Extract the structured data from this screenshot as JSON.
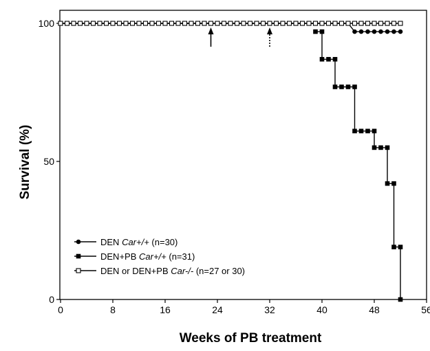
{
  "chart_data": {
    "type": "line",
    "xlabel": "Weeks of PB treatment",
    "ylabel": "Survival (%)",
    "xlim": [
      0,
      56
    ],
    "ylim": [
      0,
      100
    ],
    "x_ticks": [
      0,
      8,
      16,
      24,
      32,
      40,
      48,
      56
    ],
    "y_ticks": [
      0,
      50,
      100
    ],
    "grid": false,
    "legend_position": "bottom-left",
    "series": [
      {
        "name_parts": [
          "DEN ",
          "Car+/+",
          " (n=30)"
        ],
        "marker": "filled-circle",
        "color": "#000000",
        "points": [
          [
            0,
            100
          ],
          [
            1,
            100
          ],
          [
            2,
            100
          ],
          [
            3,
            100
          ],
          [
            4,
            100
          ],
          [
            5,
            100
          ],
          [
            6,
            100
          ],
          [
            7,
            100
          ],
          [
            8,
            100
          ],
          [
            9,
            100
          ],
          [
            10,
            100
          ],
          [
            11,
            100
          ],
          [
            12,
            100
          ],
          [
            13,
            100
          ],
          [
            14,
            100
          ],
          [
            15,
            100
          ],
          [
            16,
            100
          ],
          [
            17,
            100
          ],
          [
            18,
            100
          ],
          [
            19,
            100
          ],
          [
            20,
            100
          ],
          [
            21,
            100
          ],
          [
            22,
            100
          ],
          [
            23,
            100
          ],
          [
            24,
            100
          ],
          [
            25,
            100
          ],
          [
            26,
            100
          ],
          [
            27,
            100
          ],
          [
            28,
            100
          ],
          [
            29,
            100
          ],
          [
            30,
            100
          ],
          [
            31,
            100
          ],
          [
            32,
            100
          ],
          [
            33,
            100
          ],
          [
            34,
            100
          ],
          [
            35,
            100
          ],
          [
            36,
            100
          ],
          [
            37,
            100
          ],
          [
            38,
            100
          ],
          [
            39,
            100
          ],
          [
            40,
            100
          ],
          [
            41,
            100
          ],
          [
            42,
            100
          ],
          [
            43,
            100
          ],
          [
            44,
            100
          ],
          [
            45,
            97
          ],
          [
            46,
            97
          ],
          [
            47,
            97
          ],
          [
            48,
            97
          ],
          [
            49,
            97
          ],
          [
            50,
            97
          ],
          [
            51,
            97
          ],
          [
            52,
            97
          ]
        ]
      },
      {
        "name_parts": [
          "DEN+PB ",
          "Car+/+",
          " (n=31)"
        ],
        "marker": "filled-square",
        "color": "#000000",
        "points": [
          [
            39,
            97
          ],
          [
            40,
            97
          ],
          [
            40,
            87
          ],
          [
            41,
            87
          ],
          [
            42,
            87
          ],
          [
            42,
            77
          ],
          [
            43,
            77
          ],
          [
            44,
            77
          ],
          [
            45,
            77
          ],
          [
            45,
            61
          ],
          [
            46,
            61
          ],
          [
            47,
            61
          ],
          [
            48,
            61
          ],
          [
            48,
            55
          ],
          [
            49,
            55
          ],
          [
            50,
            55
          ],
          [
            50,
            42
          ],
          [
            51,
            42
          ],
          [
            51,
            19
          ],
          [
            52,
            19
          ],
          [
            52,
            0
          ]
        ]
      },
      {
        "name_parts": [
          "DEN or DEN+PB ",
          "Car-/-",
          " (n=27 or 30)"
        ],
        "marker": "open-square",
        "color": "#000000",
        "points": [
          [
            0,
            100
          ],
          [
            1,
            100
          ],
          [
            2,
            100
          ],
          [
            3,
            100
          ],
          [
            4,
            100
          ],
          [
            5,
            100
          ],
          [
            6,
            100
          ],
          [
            7,
            100
          ],
          [
            8,
            100
          ],
          [
            9,
            100
          ],
          [
            10,
            100
          ],
          [
            11,
            100
          ],
          [
            12,
            100
          ],
          [
            13,
            100
          ],
          [
            14,
            100
          ],
          [
            15,
            100
          ],
          [
            16,
            100
          ],
          [
            17,
            100
          ],
          [
            18,
            100
          ],
          [
            19,
            100
          ],
          [
            20,
            100
          ],
          [
            21,
            100
          ],
          [
            22,
            100
          ],
          [
            23,
            100
          ],
          [
            24,
            100
          ],
          [
            25,
            100
          ],
          [
            26,
            100
          ],
          [
            27,
            100
          ],
          [
            28,
            100
          ],
          [
            29,
            100
          ],
          [
            30,
            100
          ],
          [
            31,
            100
          ],
          [
            32,
            100
          ],
          [
            33,
            100
          ],
          [
            34,
            100
          ],
          [
            35,
            100
          ],
          [
            36,
            100
          ],
          [
            37,
            100
          ],
          [
            38,
            100
          ],
          [
            39,
            100
          ],
          [
            40,
            100
          ],
          [
            41,
            100
          ],
          [
            42,
            100
          ],
          [
            43,
            100
          ],
          [
            44,
            100
          ],
          [
            45,
            100
          ],
          [
            46,
            100
          ],
          [
            47,
            100
          ],
          [
            48,
            100
          ],
          [
            49,
            100
          ],
          [
            50,
            100
          ],
          [
            51,
            100
          ],
          [
            52,
            100
          ]
        ]
      }
    ],
    "annotations": [
      {
        "type": "arrow-up",
        "x": 23,
        "style": "solid"
      },
      {
        "type": "arrow-up",
        "x": 32,
        "style": "dotted"
      }
    ]
  }
}
